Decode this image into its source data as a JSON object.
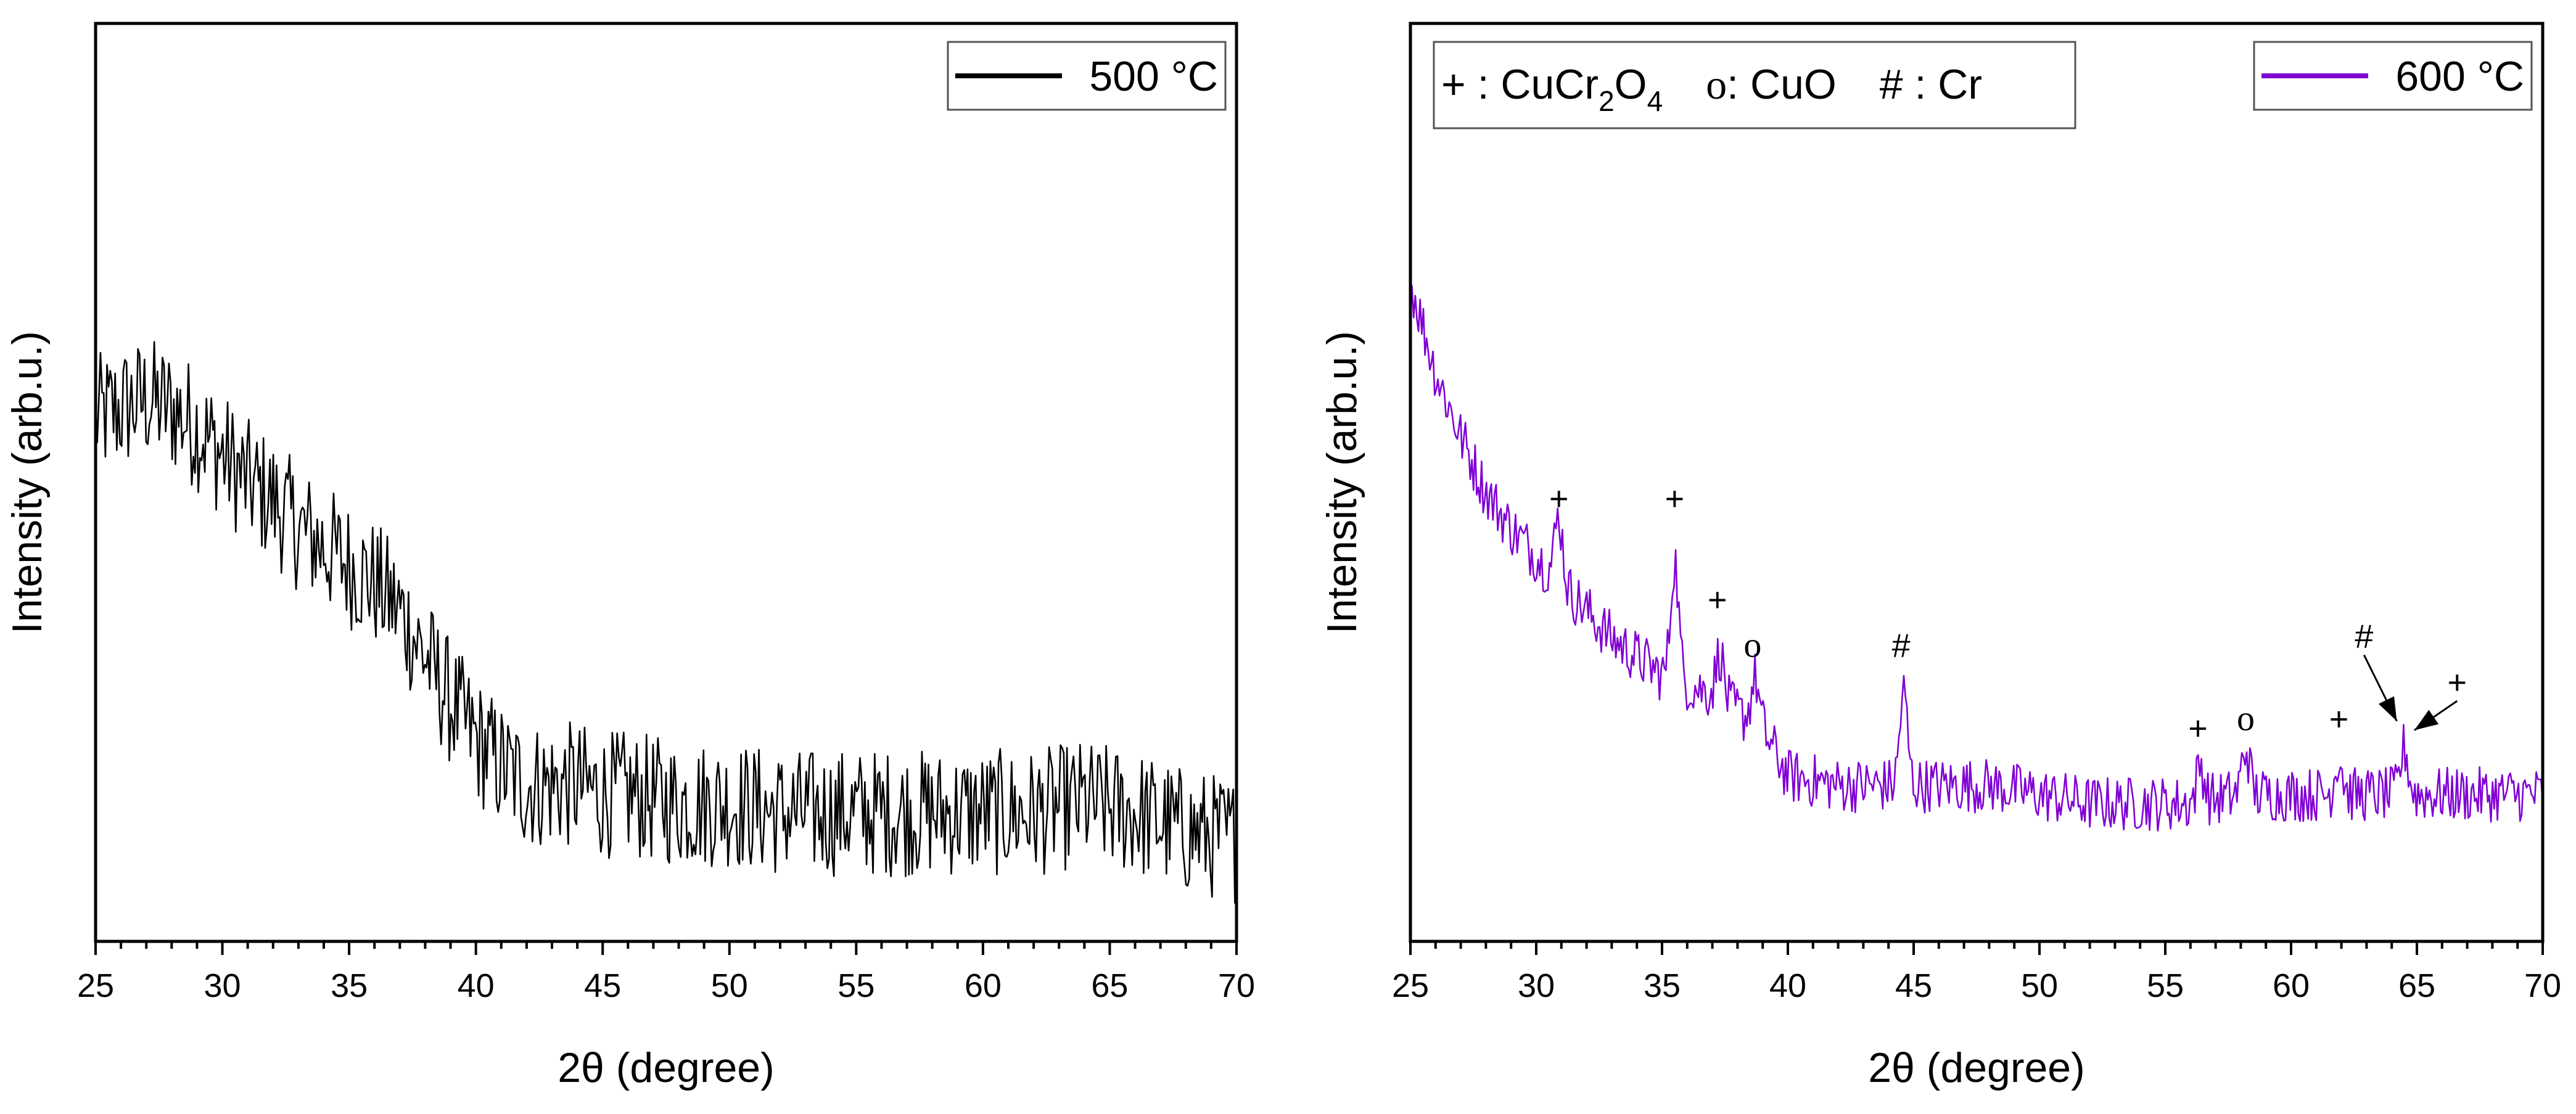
{
  "chart_data": [
    {
      "type": "line",
      "title": "",
      "xlabel": "2θ (degree)",
      "ylabel": "Intensity (arb.u.)",
      "xlim": [
        25,
        70
      ],
      "ylim": [
        0,
        100
      ],
      "xticks": [
        "25",
        "30",
        "35",
        "40",
        "45",
        "50",
        "55",
        "60",
        "65",
        "70"
      ],
      "legend": {
        "label": "500 °C",
        "position": "top-right"
      },
      "series": [
        {
          "name": "500 °C",
          "color": "#000000",
          "noise": 7,
          "x": [
            25,
            26,
            27,
            28,
            29,
            30,
            31,
            32,
            33,
            34,
            35,
            36,
            37,
            38,
            39,
            40,
            41,
            42,
            43,
            44,
            45,
            46,
            48,
            50,
            52,
            54,
            56,
            58,
            60,
            62,
            64,
            66,
            68,
            70
          ],
          "y": [
            57,
            58,
            59,
            58,
            56,
            53,
            50,
            48,
            45,
            43,
            41,
            39,
            36,
            31,
            26,
            22,
            19,
            17,
            17,
            17,
            16,
            16,
            15,
            15,
            14,
            14,
            14,
            14,
            14,
            14,
            15,
            14,
            12,
            11
          ]
        }
      ],
      "annotations": []
    },
    {
      "type": "line",
      "title": "",
      "xlabel": "2θ (degree)",
      "ylabel": "Intensity (arb.u.)",
      "xlim": [
        25,
        70
      ],
      "ylim": [
        0,
        100
      ],
      "xticks": [
        "25",
        "30",
        "35",
        "40",
        "45",
        "50",
        "55",
        "60",
        "65",
        "70"
      ],
      "legend": {
        "label": "600 °C",
        "position": "top-right"
      },
      "phase_legend": {
        "position": "top-left",
        "items": [
          {
            "symbol": "+",
            "name": "CuCr",
            "sub1": "2",
            "name2": "O",
            "sub2": "4"
          },
          {
            "symbol": "o",
            "name": "CuO"
          },
          {
            "symbol": "#",
            "name": "Cr"
          }
        ]
      },
      "series": [
        {
          "name": "600 °C",
          "color": "#8000d4",
          "noise": 3,
          "x": [
            25,
            26,
            27,
            28,
            29,
            30,
            31,
            32,
            33,
            34,
            35,
            36,
            37,
            38,
            39,
            40,
            42,
            44,
            46,
            48,
            50,
            52,
            54,
            56,
            58,
            60,
            62,
            64,
            66,
            68,
            70
          ],
          "y": [
            72,
            62,
            55,
            49,
            45,
            42,
            39,
            36,
            33,
            31,
            29,
            28,
            27,
            25,
            23,
            18,
            17,
            17,
            17,
            17,
            16,
            15,
            15,
            15,
            16,
            16,
            16,
            16,
            16,
            16,
            16
          ],
          "peaks": [
            {
              "x": 30.9,
              "h": 7
            },
            {
              "x": 35.5,
              "h": 13
            },
            {
              "x": 37.3,
              "h": 5
            },
            {
              "x": 38.7,
              "h": 5
            },
            {
              "x": 44.6,
              "h": 10
            },
            {
              "x": 56.4,
              "h": 4
            },
            {
              "x": 58.2,
              "h": 5
            },
            {
              "x": 61.9,
              "h": 4
            },
            {
              "x": 64.5,
              "h": 5
            }
          ]
        }
      ],
      "annotations": [
        {
          "symbol": "+",
          "x": 30.9,
          "y": 47
        },
        {
          "symbol": "+",
          "x": 35.5,
          "y": 47
        },
        {
          "symbol": "+",
          "x": 37.2,
          "y": 36
        },
        {
          "symbol": "o",
          "x": 38.6,
          "y": 31
        },
        {
          "symbol": "#",
          "x": 44.5,
          "y": 31
        },
        {
          "symbol": "+",
          "x": 56.3,
          "y": 22
        },
        {
          "symbol": "o",
          "x": 58.2,
          "y": 23
        },
        {
          "symbol": "+",
          "x": 61.9,
          "y": 23
        },
        {
          "symbol": "#",
          "x": 62.9,
          "y": 32,
          "arrow_to": [
            64.2,
            24
          ]
        },
        {
          "symbol": "+",
          "x": 66.6,
          "y": 27,
          "arrow_to": [
            64.9,
            23
          ]
        }
      ]
    }
  ]
}
